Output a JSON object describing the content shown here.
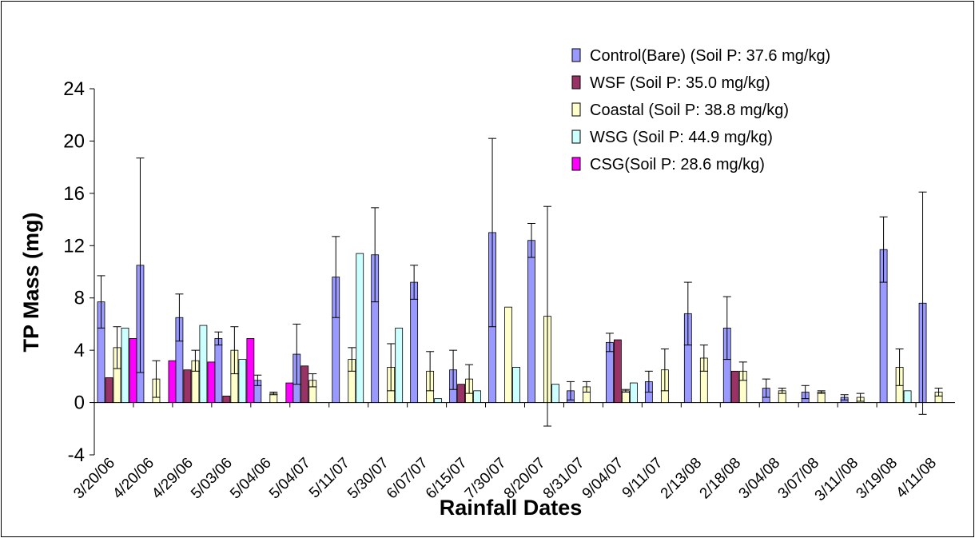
{
  "chart_data": {
    "type": "bar",
    "xlabel": "Rainfall Dates",
    "ylabel": "TP Mass (mg)",
    "ylim": [
      -4,
      24
    ],
    "yticks": [
      -4,
      0,
      4,
      8,
      12,
      16,
      20,
      24
    ],
    "grid": false,
    "legend_position": "top-right",
    "error_bars": true,
    "categories": [
      "3/20/06",
      "4/20/06",
      "4/29/06",
      "5/03/06",
      "5/04/06",
      "5/04/07",
      "5/11/07",
      "5/30/07",
      "6/07/07",
      "6/15/07",
      "7/30/07",
      "8/20/07",
      "8/31/07",
      "9/04/07",
      "9/11/07",
      "2/13/08",
      "2/18/08",
      "3/04/08",
      "3/07/08",
      "3/11//08",
      "3/19/08",
      "4/11/08"
    ],
    "series": [
      {
        "name": "Control(Bare) (Soil P: 37.6 mg/kg)",
        "color": "#9999ff",
        "values": [
          7.7,
          10.5,
          6.5,
          4.9,
          1.7,
          3.7,
          9.6,
          11.3,
          9.2,
          2.5,
          13.0,
          12.4,
          0.9,
          4.6,
          1.6,
          6.8,
          5.7,
          1.1,
          0.8,
          0.4,
          11.7,
          7.6
        ],
        "errors": [
          2.0,
          8.2,
          1.8,
          0.5,
          0.4,
          2.3,
          3.1,
          3.6,
          1.3,
          1.5,
          7.2,
          1.3,
          0.7,
          0.7,
          0.8,
          2.4,
          2.4,
          0.7,
          0.5,
          0.2,
          2.5,
          8.5
        ]
      },
      {
        "name": "WSF (Soil P: 35.0 mg/kg)",
        "color": "#993366",
        "values": [
          1.9,
          null,
          2.5,
          0.5,
          null,
          2.8,
          null,
          null,
          null,
          1.4,
          null,
          null,
          null,
          4.8,
          null,
          null,
          2.4,
          null,
          null,
          null,
          null,
          null
        ],
        "errors": [
          null,
          null,
          null,
          null,
          null,
          null,
          null,
          null,
          null,
          null,
          null,
          null,
          null,
          null,
          null,
          null,
          null,
          null,
          null,
          null,
          null,
          null
        ]
      },
      {
        "name": "Coastal (Soil P: 38.8 mg/kg)",
        "color": "#ffffcc",
        "values": [
          4.2,
          1.8,
          3.2,
          4.0,
          0.7,
          1.7,
          3.3,
          2.7,
          2.4,
          1.8,
          7.3,
          6.6,
          1.2,
          0.9,
          2.5,
          3.4,
          2.4,
          0.9,
          0.8,
          0.4,
          2.7,
          0.8
        ],
        "errors": [
          1.6,
          1.4,
          0.8,
          1.8,
          0.1,
          0.5,
          0.9,
          1.8,
          1.5,
          1.1,
          0.0,
          8.4,
          0.4,
          0.1,
          1.6,
          1.0,
          0.7,
          0.2,
          0.1,
          0.3,
          1.4,
          0.3
        ]
      },
      {
        "name": "WSG (Soil P: 44.9 mg/kg)",
        "color": "#ccffff",
        "values": [
          5.7,
          null,
          5.9,
          3.3,
          null,
          null,
          11.4,
          5.7,
          0.3,
          0.9,
          2.7,
          1.4,
          null,
          1.5,
          null,
          null,
          null,
          null,
          null,
          null,
          0.9,
          null
        ],
        "errors": [
          null,
          null,
          null,
          null,
          null,
          null,
          null,
          null,
          null,
          null,
          null,
          null,
          null,
          null,
          null,
          null,
          null,
          null,
          null,
          null,
          null,
          null
        ]
      },
      {
        "name": "CSG(Soil P:  28.6 mg/kg)",
        "color": "#ff00ff",
        "values": [
          4.9,
          3.2,
          3.1,
          4.9,
          1.5,
          null,
          null,
          null,
          null,
          null,
          null,
          null,
          null,
          null,
          null,
          null,
          null,
          null,
          null,
          null,
          null,
          null
        ],
        "errors": [
          null,
          null,
          null,
          null,
          null,
          null,
          null,
          null,
          null,
          null,
          null,
          null,
          null,
          null,
          null,
          null,
          null,
          null,
          null,
          null,
          null,
          null
        ]
      }
    ]
  }
}
